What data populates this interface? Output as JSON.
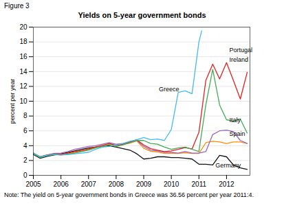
{
  "chart_data": {
    "type": "line",
    "title": "Yields on 5-year government bonds",
    "figure_label": "Figure 3",
    "ylabel": "percent per year",
    "note": "Note: The yield on 5-year government bonds in Greece was 36.56 percent per year 2011:4.",
    "xlim": [
      2005.0,
      2012.85
    ],
    "xticks": [
      2005,
      2006,
      2007,
      2008,
      2009,
      2010,
      2011,
      2012
    ],
    "ylim": [
      0,
      20
    ],
    "yticks": [
      0,
      2,
      4,
      6,
      8,
      10,
      12,
      14,
      16,
      18,
      20
    ],
    "grid": "y",
    "series": [
      {
        "name": "Germany",
        "color": "#111111",
        "x": [
          2005.0,
          2005.25,
          2005.5,
          2005.75,
          2006.0,
          2006.25,
          2006.5,
          2006.75,
          2007.0,
          2007.25,
          2007.5,
          2007.75,
          2008.0,
          2008.25,
          2008.5,
          2008.75,
          2009.0,
          2009.25,
          2009.5,
          2009.75,
          2010.0,
          2010.25,
          2010.5,
          2010.75,
          2011.0,
          2011.25,
          2011.5,
          2011.75,
          2012.0,
          2012.25,
          2012.5,
          2012.75
        ],
        "values": [
          2.8,
          2.3,
          2.55,
          2.75,
          2.9,
          3.1,
          3.3,
          3.5,
          3.7,
          3.8,
          3.9,
          4.0,
          3.8,
          3.6,
          3.4,
          2.9,
          2.2,
          2.3,
          2.5,
          2.5,
          2.4,
          2.4,
          2.3,
          2.2,
          1.5,
          1.5,
          1.4,
          2.7,
          2.5,
          1.4,
          1.0,
          0.8
        ]
      },
      {
        "name": "Spain",
        "color": "#FF8C00",
        "x": [
          2005.0,
          2005.25,
          2005.5,
          2005.75,
          2006.0,
          2006.25,
          2006.5,
          2006.75,
          2007.0,
          2007.25,
          2007.5,
          2007.75,
          2008.0,
          2008.25,
          2008.5,
          2008.75,
          2009.0,
          2009.25,
          2009.5,
          2009.75,
          2010.0,
          2010.25,
          2010.5,
          2010.75,
          2011.0,
          2011.25,
          2011.5,
          2011.75,
          2012.0,
          2012.25,
          2012.5,
          2012.75
        ],
        "values": [
          3.0,
          2.45,
          2.7,
          2.85,
          2.8,
          2.9,
          3.1,
          3.3,
          3.5,
          3.75,
          4.0,
          4.15,
          4.05,
          4.15,
          4.35,
          4.65,
          3.65,
          3.25,
          3.15,
          2.95,
          2.95,
          2.95,
          3.05,
          2.95,
          2.95,
          4.4,
          4.6,
          4.5,
          4.3,
          4.5,
          4.5,
          4.3
        ]
      },
      {
        "name": "Italy",
        "color": "#9966BB",
        "x": [
          2005.0,
          2005.25,
          2005.5,
          2005.75,
          2006.0,
          2006.25,
          2006.5,
          2006.75,
          2007.0,
          2007.25,
          2007.5,
          2007.75,
          2008.0,
          2008.25,
          2008.5,
          2008.75,
          2009.0,
          2009.25,
          2009.5,
          2009.75,
          2010.0,
          2010.25,
          2010.5,
          2010.75,
          2011.0,
          2011.25,
          2011.5,
          2011.75,
          2012.0,
          2012.25,
          2012.5,
          2012.75
        ],
        "values": [
          2.9,
          2.5,
          2.75,
          2.95,
          3.0,
          3.2,
          3.5,
          3.7,
          3.9,
          4.0,
          4.2,
          4.4,
          4.2,
          4.3,
          4.5,
          4.7,
          3.9,
          3.4,
          3.3,
          3.1,
          3.1,
          3.0,
          3.2,
          3.0,
          3.0,
          3.2,
          5.5,
          6.0,
          6.1,
          5.9,
          4.7,
          4.3
        ]
      },
      {
        "name": "Portugal",
        "color": "#DD2222",
        "x": [
          2005.0,
          2005.25,
          2005.5,
          2005.75,
          2006.0,
          2006.25,
          2006.5,
          2006.75,
          2007.0,
          2007.25,
          2007.5,
          2007.75,
          2008.0,
          2008.25,
          2008.5,
          2008.75,
          2009.0,
          2009.25,
          2009.5,
          2009.75,
          2010.0,
          2010.25,
          2010.5,
          2010.75,
          2011.0,
          2011.25,
          2011.5,
          2011.75,
          2012.0,
          2012.25,
          2012.5,
          2012.75
        ],
        "values": [
          3.0,
          2.5,
          2.75,
          2.9,
          2.85,
          3.0,
          3.2,
          3.35,
          3.55,
          3.8,
          4.05,
          4.3,
          4.05,
          4.2,
          4.5,
          4.8,
          4.1,
          3.6,
          3.4,
          3.2,
          3.3,
          3.5,
          3.75,
          3.55,
          5.8,
          12.8,
          15.0,
          13.0,
          15.2,
          12.8,
          10.3,
          13.9
        ]
      },
      {
        "name": "Ireland",
        "color": "#44AA55",
        "x": [
          2005.0,
          2005.25,
          2005.5,
          2005.75,
          2006.0,
          2006.25,
          2006.5,
          2006.75,
          2007.0,
          2007.25,
          2007.5,
          2007.75,
          2008.0,
          2008.25,
          2008.5,
          2008.75,
          2009.0,
          2009.25,
          2009.5,
          2009.75,
          2010.0,
          2010.25,
          2010.5,
          2010.75,
          2011.0,
          2011.25,
          2011.5,
          2011.75,
          2012.0,
          2012.25,
          2012.5,
          2012.75
        ],
        "values": [
          2.9,
          2.4,
          2.65,
          2.8,
          2.75,
          2.85,
          3.0,
          3.2,
          3.4,
          3.7,
          3.9,
          4.1,
          3.9,
          4.1,
          4.4,
          4.7,
          4.7,
          4.3,
          4.2,
          3.8,
          3.5,
          3.7,
          3.8,
          3.5,
          3.2,
          9.5,
          14.3,
          9.5,
          7.5,
          7.3,
          7.6,
          5.7
        ]
      },
      {
        "name": "Greece",
        "color": "#44BBEE",
        "x": [
          2005.0,
          2005.25,
          2005.5,
          2005.75,
          2006.0,
          2006.25,
          2006.5,
          2006.75,
          2007.0,
          2007.25,
          2007.5,
          2007.75,
          2008.0,
          2008.25,
          2008.5,
          2008.75,
          2009.0,
          2009.25,
          2009.5,
          2009.75,
          2010.0,
          2010.25,
          2010.5,
          2010.75,
          2011.0,
          2011.1
        ],
        "values": [
          3.0,
          2.5,
          2.7,
          2.85,
          2.75,
          2.8,
          2.9,
          3.0,
          3.1,
          3.5,
          3.8,
          3.9,
          4.1,
          4.3,
          4.6,
          4.8,
          5.1,
          4.8,
          4.9,
          4.7,
          6.2,
          11.2,
          11.4,
          11.0,
          18.0,
          19.5
        ]
      }
    ],
    "annotations": [
      {
        "text": "Germany",
        "x": 2011.6,
        "y": 1.1
      },
      {
        "text": "Spain",
        "x": 2012.1,
        "y": 5.35
      },
      {
        "text": "Italy",
        "x": 2012.1,
        "y": 7.2
      },
      {
        "text": "Portugal",
        "x": 2012.1,
        "y": 16.6
      },
      {
        "text": "Ireland",
        "x": 2012.1,
        "y": 15.3
      },
      {
        "text": "Greece",
        "x": 2009.55,
        "y": 11.3
      }
    ]
  }
}
